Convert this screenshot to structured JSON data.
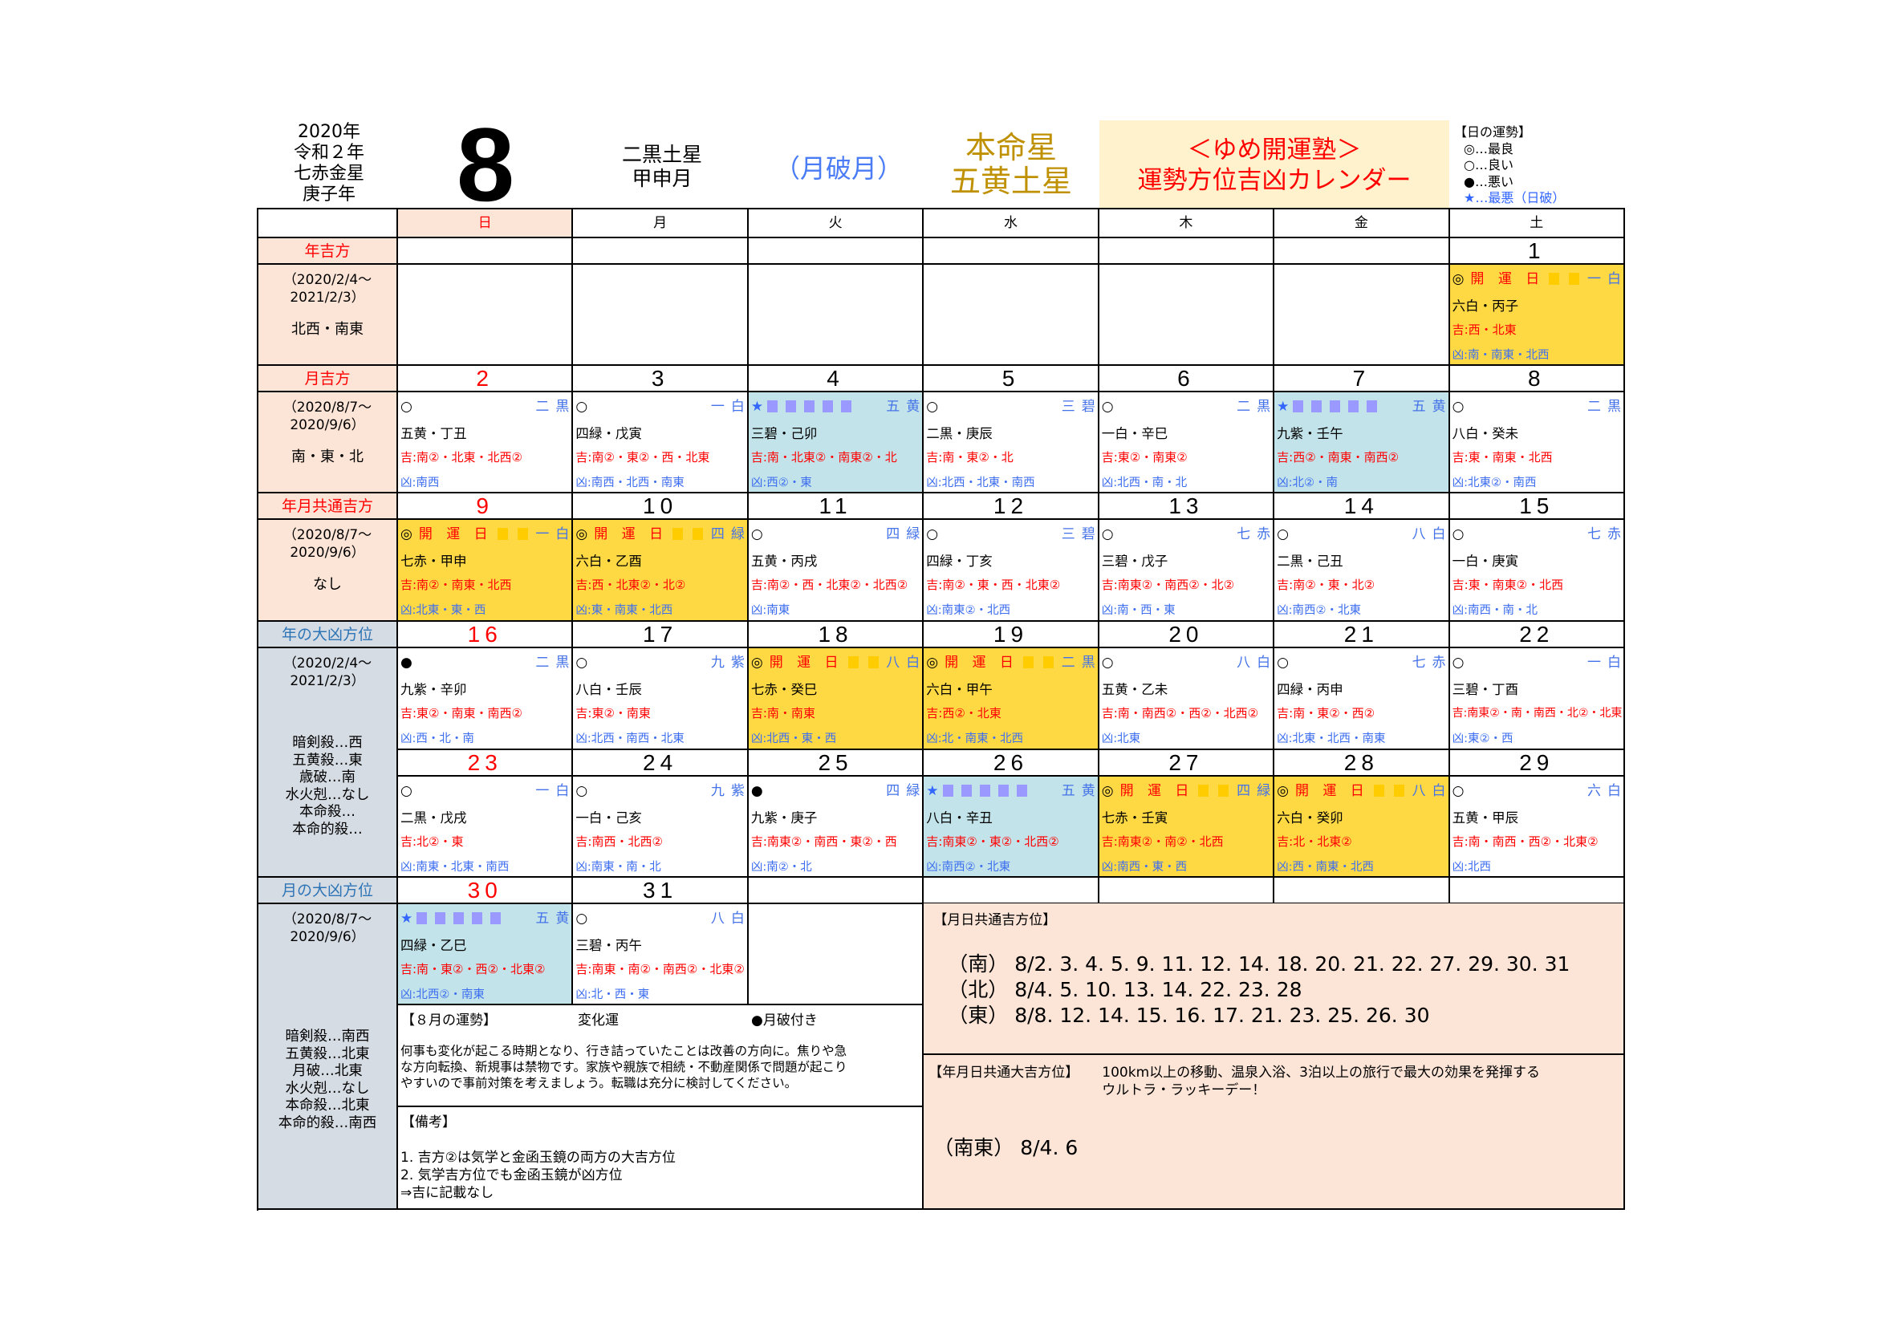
{
  "header": {
    "year_lines": [
      "2020年",
      "令和２年",
      "七赤金星",
      "庚子年"
    ],
    "month": "8",
    "month_star": [
      "二黒土星",
      "甲申月"
    ],
    "gappa": "（月破月）",
    "honmei": [
      "本命星",
      "五黄土星"
    ],
    "title": [
      "＜ゆめ開運塾＞",
      "運勢方位吉凶カレンダー"
    ],
    "legend": [
      "【日の運勢】",
      "◎…最良",
      "○…良い",
      "●…悪い",
      "★…最悪（日破）"
    ]
  },
  "colors": {
    "kaiun_bg": "#ffd944",
    "star_bg": "#c2e3ea",
    "pink": "#fce4d6",
    "gray": "#d6dce4",
    "red": "#ff0000",
    "blue": "#3d6ef0",
    "gold": "#bf9000",
    "title_bg": "#fff2cc",
    "kaiun_square": "#ffcc00",
    "star_square": "#9999ff"
  },
  "weekdays": [
    "日",
    "月",
    "火",
    "水",
    "木",
    "金",
    "土"
  ],
  "kaiun_label": "開 運 日",
  "side": [
    {
      "label": "年吉方",
      "period": [
        "（2020/2/4〜",
        "2021/2/3）"
      ],
      "value": [
        "北西・南東"
      ]
    },
    {
      "label": "月吉方",
      "period": [
        "（2020/8/7〜",
        "2020/9/6）"
      ],
      "value": [
        "南・東・北"
      ]
    },
    {
      "label": "年月共通吉方",
      "period": [
        "（2020/8/7〜",
        "2020/9/6）"
      ],
      "value": [
        "なし"
      ]
    },
    {
      "label": "年の大凶方位",
      "period": [
        "（2020/2/4〜",
        "2021/2/3）"
      ],
      "value": [
        "暗剣殺…西",
        "五黄殺…東",
        "歳破…南",
        "水火剋…なし",
        "本命殺…",
        "本命的殺…"
      ]
    },
    {
      "label": "月の大凶方位",
      "period": [
        "（2020/8/7〜",
        "2020/9/6）"
      ],
      "value": [
        "暗剣殺…南西",
        "五黄殺…北東",
        "月破…北東",
        "水火剋…なし",
        "本命殺…北東",
        "本命的殺…南西"
      ]
    }
  ],
  "days": [
    {
      "d": "1",
      "weekday": "土",
      "type": "kaiun",
      "mark": "◎",
      "star": "一白",
      "kyusei": "六白・丙子",
      "kichi": "吉:西・北東",
      "kyo": "凶:南・南東・北西"
    },
    {
      "d": "2",
      "weekday": "日",
      "type": "normal",
      "mark": "○",
      "star": "二黒",
      "kyusei": "五黄・丁丑",
      "kichi": "吉:南②・北東・北西②",
      "kyo": "凶:南西"
    },
    {
      "d": "3",
      "weekday": "月",
      "type": "normal",
      "mark": "○",
      "star": "一白",
      "kyusei": "四緑・戊寅",
      "kichi": "吉:南②・東②・西・北東",
      "kyo": "凶:南西・北西・南東"
    },
    {
      "d": "4",
      "weekday": "火",
      "type": "star",
      "mark": "★",
      "star": "五黄",
      "kyusei": "三碧・己卯",
      "kichi": "吉:南・北東②・南東②・北",
      "kyo": "凶:西②・東"
    },
    {
      "d": "5",
      "weekday": "水",
      "type": "normal",
      "mark": "○",
      "star": "三碧",
      "kyusei": "二黒・庚辰",
      "kichi": "吉:南・東②・北",
      "kyo": "凶:北西・北東・南西"
    },
    {
      "d": "6",
      "weekday": "木",
      "type": "normal",
      "mark": "○",
      "star": "二黒",
      "kyusei": "一白・辛巳",
      "kichi": "吉:東②・南東②",
      "kyo": "凶:北西・南・北"
    },
    {
      "d": "7",
      "weekday": "金",
      "type": "star",
      "mark": "★",
      "star": "五黄",
      "kyusei": "九紫・壬午",
      "kichi": "吉:西②・南東・南西②",
      "kyo": "凶:北②・南"
    },
    {
      "d": "8",
      "weekday": "土",
      "type": "normal",
      "mark": "○",
      "star": "二黒",
      "kyusei": "八白・癸未",
      "kichi": "吉:東・南東・北西",
      "kyo": "凶:北東②・南西"
    },
    {
      "d": "9",
      "weekday": "日",
      "type": "kaiun",
      "mark": "◎",
      "star": "一白",
      "kyusei": "七赤・甲申",
      "kichi": "吉:南②・南東・北西",
      "kyo": "凶:北東・東・西"
    },
    {
      "d": "10",
      "weekday": "月",
      "type": "kaiun",
      "mark": "◎",
      "star": "四緑",
      "kyusei": "六白・乙酉",
      "kichi": "吉:西・北東②・北②",
      "kyo": "凶:東・南東・北西"
    },
    {
      "d": "11",
      "weekday": "火",
      "type": "normal",
      "mark": "○",
      "star": "四緑",
      "kyusei": "五黄・丙戌",
      "kichi": "吉:南②・西・北東②・北西②",
      "kyo": "凶:南東"
    },
    {
      "d": "12",
      "weekday": "水",
      "type": "normal",
      "mark": "○",
      "star": "三碧",
      "kyusei": "四緑・丁亥",
      "kichi": "吉:南②・東・西・北東②",
      "kyo": "凶:南東②・北西"
    },
    {
      "d": "13",
      "weekday": "木",
      "type": "normal",
      "mark": "○",
      "star": "七赤",
      "kyusei": "三碧・戊子",
      "kichi": "吉:南東②・南西②・北②",
      "kyo": "凶:南・西・東"
    },
    {
      "d": "14",
      "weekday": "金",
      "type": "normal",
      "mark": "○",
      "star": "八白",
      "kyusei": "二黒・己丑",
      "kichi": "吉:南②・東・北②",
      "kyo": "凶:南西②・北東"
    },
    {
      "d": "15",
      "weekday": "土",
      "type": "normal",
      "mark": "○",
      "star": "七赤",
      "kyusei": "一白・庚寅",
      "kichi": "吉:東・南東②・北西",
      "kyo": "凶:南西・南・北"
    },
    {
      "d": "16",
      "weekday": "日",
      "type": "bad",
      "mark": "●",
      "star": "二黒",
      "kyusei": "九紫・辛卯",
      "kichi": "吉:東②・南東・南西②",
      "kyo": "凶:西・北・南"
    },
    {
      "d": "17",
      "weekday": "月",
      "type": "normal",
      "mark": "○",
      "star": "九紫",
      "kyusei": "八白・壬辰",
      "kichi": "吉:東②・南東",
      "kyo": "凶:北西・南西・北東"
    },
    {
      "d": "18",
      "weekday": "火",
      "type": "kaiun",
      "mark": "◎",
      "star": "八白",
      "kyusei": "七赤・癸巳",
      "kichi": "吉:南・南東",
      "kyo": "凶:北西・東・西"
    },
    {
      "d": "19",
      "weekday": "水",
      "type": "kaiun",
      "mark": "◎",
      "star": "二黒",
      "kyusei": "六白・甲午",
      "kichi": "吉:西②・北東",
      "kyo": "凶:北・南東・北西"
    },
    {
      "d": "20",
      "weekday": "木",
      "type": "normal",
      "mark": "○",
      "star": "八白",
      "kyusei": "五黄・乙未",
      "kichi": "吉:南・南西②・西②・北西②",
      "kyo": "凶:北東"
    },
    {
      "d": "21",
      "weekday": "金",
      "type": "normal",
      "mark": "○",
      "star": "七赤",
      "kyusei": "四緑・丙申",
      "kichi": "吉:南・東②・西②",
      "kyo": "凶:北東・北西・南東"
    },
    {
      "d": "22",
      "weekday": "土",
      "type": "normal",
      "mark": "○",
      "star": "一白",
      "kyusei": "三碧・丁酉",
      "kichi": "吉:南東②・南・南西・北②・北東",
      "kyo": "凶:東②・西"
    },
    {
      "d": "23",
      "weekday": "日",
      "type": "normal",
      "mark": "○",
      "star": "一白",
      "kyusei": "二黒・戊戌",
      "kichi": "吉:北②・東",
      "kyo": "凶:南東・北東・南西"
    },
    {
      "d": "24",
      "weekday": "月",
      "type": "normal",
      "mark": "○",
      "star": "九紫",
      "kyusei": "一白・己亥",
      "kichi": "吉:南西・北西②",
      "kyo": "凶:南東・南・北"
    },
    {
      "d": "25",
      "weekday": "火",
      "type": "bad",
      "mark": "●",
      "star": "四緑",
      "kyusei": "九紫・庚子",
      "kichi": "吉:南東②・南西・東②・西",
      "kyo": "凶:南②・北"
    },
    {
      "d": "26",
      "weekday": "水",
      "type": "star",
      "mark": "★",
      "star": "五黄",
      "kyusei": "八白・辛丑",
      "kichi": "吉:南東②・東②・北西②",
      "kyo": "凶:南西②・北東"
    },
    {
      "d": "27",
      "weekday": "木",
      "type": "kaiun",
      "mark": "◎",
      "star": "四緑",
      "kyusei": "七赤・壬寅",
      "kichi": "吉:南東②・南②・北西",
      "kyo": "凶:南西・東・西"
    },
    {
      "d": "28",
      "weekday": "金",
      "type": "kaiun",
      "mark": "◎",
      "star": "八白",
      "kyusei": "六白・癸卯",
      "kichi": "吉:北・北東②",
      "kyo": "凶:西・南東・北西"
    },
    {
      "d": "29",
      "weekday": "土",
      "type": "normal",
      "mark": "○",
      "star": "六白",
      "kyusei": "五黄・甲辰",
      "kichi": "吉:南・南西・西②・北東②",
      "kyo": "凶:北西"
    },
    {
      "d": "30",
      "weekday": "日",
      "type": "star",
      "mark": "★",
      "star": "五黄",
      "kyusei": "四緑・乙巳",
      "kichi": "吉:南・東②・西②・北東②",
      "kyo": "凶:北西②・南東"
    },
    {
      "d": "31",
      "weekday": "月",
      "type": "normal",
      "mark": "○",
      "star": "八白",
      "kyusei": "三碧・丙午",
      "kichi": "吉:南東・南②・南西②・北東②",
      "kyo": "凶:北・西・東"
    }
  ],
  "fortune": {
    "title": "【８月の運勢】",
    "name": "変化運",
    "note": "●月破付き",
    "text": [
      "何事も変化が起こる時期となり、行き詰っていたことは改善の方向に。焦りや急",
      "な方向転換、新規事は禁物です。家族や親族で相続・不動産関係で問題が起こり",
      "やすいので事前対策を考えましょう。転職は充分に検討してください。"
    ]
  },
  "remarks": {
    "title": "【備考】",
    "lines": [
      "1. 吉方②は気学と金函玉鏡の両方の大吉方位",
      "2. 気学吉方位でも金函玉鏡が凶方位",
      "⇒吉に記載なし"
    ]
  },
  "common_md": {
    "title": "【月日共通吉方位】",
    "lines": [
      "（南） 8/2. 3. 4. 5. 9. 11. 12. 14. 18. 20. 21. 22. 27. 29. 30. 31",
      "（北） 8/4. 5. 10. 13. 14. 22. 23. 28",
      "（東） 8/8. 12. 14. 15. 16. 17. 21. 23. 25. 26. 30"
    ]
  },
  "common_ymd": {
    "title": "【年月日共通大吉方位】",
    "desc": [
      "100km以上の移動、温泉入浴、3泊以上の旅行で最大の効果を発揮する",
      "ウルトラ・ラッキーデー！"
    ],
    "value": "（南東） 8/4. 6"
  }
}
